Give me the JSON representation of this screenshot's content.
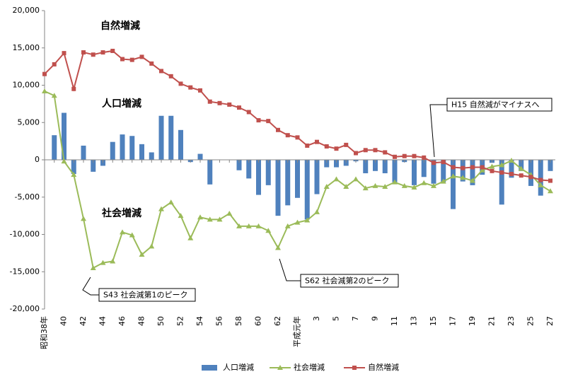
{
  "chart_data": {
    "type": "bar",
    "categories": [
      "昭和38年",
      null,
      "40",
      null,
      "42",
      null,
      "44",
      null,
      "46",
      null,
      "48",
      null,
      "50",
      null,
      "52",
      null,
      "54",
      null,
      "56",
      null,
      "58",
      null,
      "60",
      null,
      "62",
      null,
      "平成元年",
      null,
      "3",
      null,
      "5",
      null,
      "7",
      null,
      "9",
      null,
      "11",
      null,
      "13",
      null,
      "15",
      null,
      "17",
      null,
      "19",
      null,
      "21",
      null,
      "23",
      null,
      "25",
      null,
      "27"
    ],
    "series": [
      {
        "name": "人口増減",
        "type": "bar",
        "color": "#4f81bd",
        "values": [
          null,
          3300,
          6300,
          -1900,
          1900,
          -1600,
          -800,
          2400,
          3400,
          3200,
          2100,
          1000,
          5900,
          5900,
          4000,
          -300,
          800,
          -3300,
          0,
          0,
          -1400,
          -2500,
          -4700,
          -3400,
          -7500,
          -6100,
          -5100,
          -8000,
          -4600,
          -1000,
          -1000,
          -800,
          -200,
          -1800,
          -1500,
          -1800,
          -3000,
          -300,
          -3400,
          -2300,
          -3200,
          -3000,
          -6600,
          -2900,
          -3400,
          -2000,
          -400,
          -6000,
          -2400,
          -1500,
          -3500,
          -4800,
          -1500
        ]
      },
      {
        "name": "社会増減",
        "type": "line",
        "marker": "triangle",
        "color": "#9bbb59",
        "values": [
          9200,
          8600,
          -200,
          -2000,
          -7900,
          -14500,
          -13800,
          -13600,
          -9700,
          -10100,
          -12700,
          -11600,
          -6600,
          -5700,
          -7500,
          -10500,
          -7700,
          -8000,
          -8000,
          -7200,
          -8900,
          -8900,
          -8900,
          -9500,
          -11800,
          -8900,
          -8400,
          -8100,
          -7000,
          -3600,
          -2600,
          -3600,
          -2600,
          -3800,
          -3500,
          -3600,
          -3000,
          -3500,
          -3700,
          -3100,
          -3500,
          -2900,
          -2200,
          -2400,
          -2800,
          -1400,
          -900,
          -700,
          -100,
          -1200,
          -2000,
          -3400,
          -4200
        ]
      },
      {
        "name": "自然増減",
        "type": "line",
        "marker": "square",
        "color": "#c0504d",
        "values": [
          11500,
          12800,
          14300,
          9500,
          14400,
          14100,
          14400,
          14600,
          13500,
          13400,
          13800,
          12900,
          11900,
          11200,
          10200,
          9700,
          9300,
          7800,
          7600,
          7400,
          7000,
          6400,
          5300,
          5200,
          4000,
          3300,
          3000,
          1900,
          2400,
          1800,
          1500,
          2000,
          900,
          1300,
          1300,
          1000,
          400,
          500,
          500,
          300,
          -400,
          -300,
          -1000,
          -1100,
          -1000,
          -1000,
          -1500,
          -1700,
          -1900,
          -2100,
          -2300,
          -2700,
          -2800
        ]
      }
    ],
    "ylim": [
      -20000,
      20000
    ],
    "yticks": [
      {
        "value": -20000,
        "label": "-20,000"
      },
      {
        "value": -15000,
        "label": "-15,000"
      },
      {
        "value": -10000,
        "label": "-10,000"
      },
      {
        "value": -5000,
        "label": "-5,000"
      },
      0,
      {
        "value": 5000,
        "label": "5,000"
      },
      {
        "value": 10000,
        "label": "10,000"
      },
      {
        "value": 15000,
        "label": "15,000"
      },
      {
        "value": 20000,
        "label": "20,000"
      }
    ],
    "grid": false,
    "legend": "bottom",
    "annotations": [
      {
        "text": "自然増減",
        "color": "#c0504d"
      },
      {
        "text": "人口増減",
        "color": "#2e75b6"
      },
      {
        "text": "社会増減",
        "color": "#70ad47"
      },
      {
        "text": "H15 自然減がマイナスへ"
      },
      {
        "text": "S62 社会減第2のピーク"
      },
      {
        "text": "S43 社会減第1のピーク"
      }
    ]
  }
}
